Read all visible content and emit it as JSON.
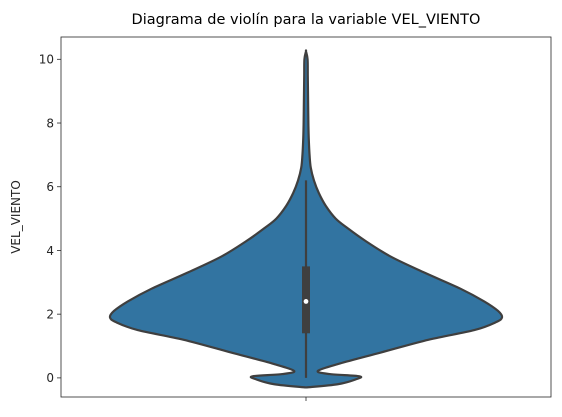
{
  "chart_data": {
    "type": "violin",
    "title": "Diagrama de violín para la variable VEL_VIENTO",
    "xlabel": "",
    "ylabel": "VEL_VIENTO",
    "ylim": [
      -0.6,
      10.7
    ],
    "yticks": [
      0,
      2,
      4,
      6,
      8,
      10
    ],
    "grid": false,
    "colors": {
      "fill": "#3274a1",
      "edge": "#3f3f3f",
      "median": "#ffffff"
    },
    "violin": {
      "min": -0.3,
      "max": 10.25,
      "q1": 1.4,
      "median": 2.4,
      "q3": 3.5,
      "whisker_low": 0.0,
      "whisker_high": 6.2,
      "density": [
        {
          "y": -0.3,
          "w": 0.0
        },
        {
          "y": -0.2,
          "w": 0.16
        },
        {
          "y": -0.05,
          "w": 0.25
        },
        {
          "y": 0.05,
          "w": 0.27
        },
        {
          "y": 0.12,
          "w": 0.12
        },
        {
          "y": 0.22,
          "w": 0.06
        },
        {
          "y": 0.45,
          "w": 0.17
        },
        {
          "y": 0.8,
          "w": 0.38
        },
        {
          "y": 1.2,
          "w": 0.62
        },
        {
          "y": 1.5,
          "w": 0.85
        },
        {
          "y": 1.75,
          "w": 0.96
        },
        {
          "y": 1.9,
          "w": 0.99
        },
        {
          "y": 2.1,
          "w": 0.97
        },
        {
          "y": 2.4,
          "w": 0.9
        },
        {
          "y": 2.8,
          "w": 0.78
        },
        {
          "y": 3.3,
          "w": 0.6
        },
        {
          "y": 3.8,
          "w": 0.43
        },
        {
          "y": 4.3,
          "w": 0.3
        },
        {
          "y": 4.7,
          "w": 0.21
        },
        {
          "y": 5.0,
          "w": 0.15
        },
        {
          "y": 5.4,
          "w": 0.1
        },
        {
          "y": 5.8,
          "w": 0.065
        },
        {
          "y": 6.2,
          "w": 0.04
        },
        {
          "y": 6.6,
          "w": 0.024
        },
        {
          "y": 7.0,
          "w": 0.018
        },
        {
          "y": 7.5,
          "w": 0.014
        },
        {
          "y": 8.0,
          "w": 0.012
        },
        {
          "y": 8.5,
          "w": 0.011
        },
        {
          "y": 9.0,
          "w": 0.01
        },
        {
          "y": 9.5,
          "w": 0.009
        },
        {
          "y": 10.0,
          "w": 0.008
        },
        {
          "y": 10.25,
          "w": 0.0
        }
      ]
    }
  }
}
